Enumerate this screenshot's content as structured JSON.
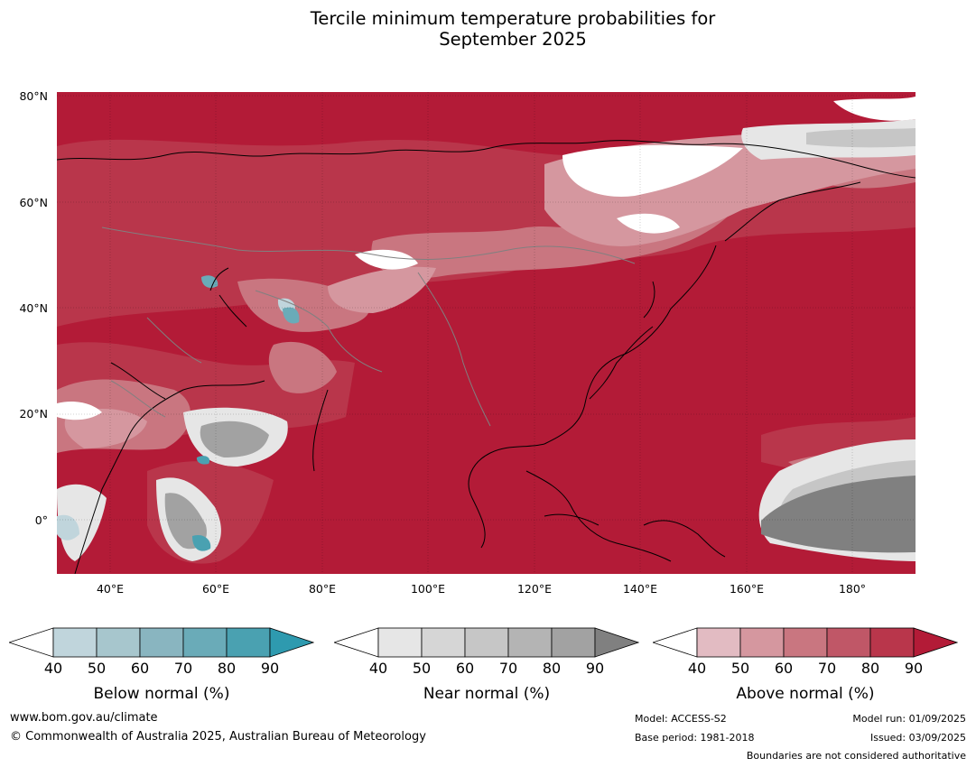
{
  "title_line1": "Tercile minimum temperature probabilities for",
  "title_line2": "September 2025",
  "map": {
    "lat_labels": [
      "80°N",
      "60°N",
      "40°N",
      "20°N",
      "0°"
    ],
    "lon_labels": [
      "40°E",
      "60°E",
      "80°E",
      "100°E",
      "120°E",
      "140°E",
      "160°E",
      "180°"
    ],
    "colors": {
      "above_base": "#b31b37",
      "ocean_line": "#000000",
      "border_line": "#808080"
    }
  },
  "colorbars": [
    {
      "label": "Below normal (%)",
      "ticks": [
        "40",
        "50",
        "60",
        "70",
        "80",
        "90"
      ],
      "colors": [
        "#ffffff",
        "#c0d5dc",
        "#a7c6cd",
        "#89b5c0",
        "#6aabb8",
        "#4aa1b1",
        "#2e9aaf"
      ]
    },
    {
      "label": "Near normal (%)",
      "ticks": [
        "40",
        "50",
        "60",
        "70",
        "80",
        "90"
      ],
      "colors": [
        "#ffffff",
        "#e6e6e6",
        "#d6d6d6",
        "#c6c6c6",
        "#b4b4b4",
        "#a2a2a2",
        "#808080"
      ]
    },
    {
      "label": "Above normal (%)",
      "ticks": [
        "40",
        "50",
        "60",
        "70",
        "80",
        "90"
      ],
      "colors": [
        "#ffffff",
        "#e2bbc2",
        "#d5979f",
        "#c97680",
        "#c05767",
        "#b9364b",
        "#b31b37"
      ]
    }
  ],
  "footer": {
    "website": "www.bom.gov.au/climate",
    "copyright": "© Commonwealth of Australia 2025, Australian Bureau of Meteorology",
    "model": "Model: ACCESS-S2",
    "base_period": "Base period: 1981-2018",
    "model_run": "Model run: 01/09/2025",
    "issued": "Issued: 03/09/2025",
    "disclaimer": "Boundaries are not considered authoritative"
  }
}
